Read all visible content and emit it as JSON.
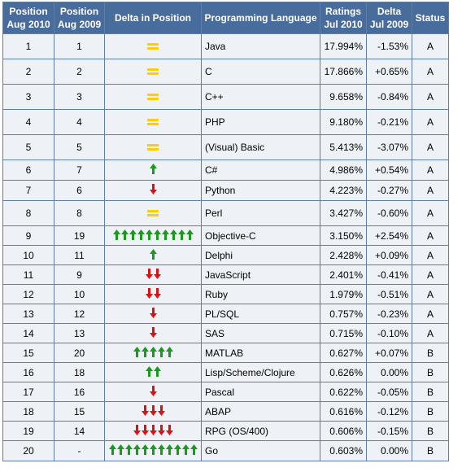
{
  "headers": {
    "pos2010": [
      "Position",
      "Aug 2010"
    ],
    "pos2009": [
      "Position",
      "Aug 2009"
    ],
    "delta_pos": "Delta in Position",
    "language": "Programming Language",
    "ratings": [
      "Ratings",
      "Jul 2010"
    ],
    "delta": [
      "Delta",
      "Jul 2009"
    ],
    "status": "Status"
  },
  "colors": {
    "up": "#1a9a1a",
    "down": "#dd1111",
    "same": "#ffcc00",
    "header_bg": "#486c9c",
    "cell_bg": "#eef2f7",
    "link": "#1a1ea6"
  },
  "rows": [
    {
      "pos2010": "1",
      "pos2009": "1",
      "change": {
        "type": "same",
        "count": 1
      },
      "language": "Java",
      "ratings": "17.994%",
      "delta": "-1.53%",
      "status": "A"
    },
    {
      "pos2010": "2",
      "pos2009": "2",
      "change": {
        "type": "same",
        "count": 1
      },
      "language": "C",
      "ratings": "17.866%",
      "delta": "+0.65%",
      "status": "A"
    },
    {
      "pos2010": "3",
      "pos2009": "3",
      "change": {
        "type": "same",
        "count": 1
      },
      "language": "C++",
      "ratings": "9.658%",
      "delta": "-0.84%",
      "status": "A"
    },
    {
      "pos2010": "4",
      "pos2009": "4",
      "change": {
        "type": "same",
        "count": 1
      },
      "language": "PHP",
      "ratings": "9.180%",
      "delta": "-0.21%",
      "status": "A"
    },
    {
      "pos2010": "5",
      "pos2009": "5",
      "change": {
        "type": "same",
        "count": 1
      },
      "language": "(Visual) Basic",
      "ratings": "5.413%",
      "delta": "-3.07%",
      "status": "A"
    },
    {
      "pos2010": "6",
      "pos2009": "7",
      "change": {
        "type": "up",
        "count": 1
      },
      "language": "C#",
      "ratings": "4.986%",
      "delta": "+0.54%",
      "status": "A"
    },
    {
      "pos2010": "7",
      "pos2009": "6",
      "change": {
        "type": "down",
        "count": 1
      },
      "language": "Python",
      "ratings": "4.223%",
      "delta": "-0.27%",
      "status": "A"
    },
    {
      "pos2010": "8",
      "pos2009": "8",
      "change": {
        "type": "same",
        "count": 1
      },
      "language": "Perl",
      "ratings": "3.427%",
      "delta": "-0.60%",
      "status": "A"
    },
    {
      "pos2010": "9",
      "pos2009": "19",
      "change": {
        "type": "up",
        "count": 10
      },
      "language": "Objective-C",
      "ratings": "3.150%",
      "delta": "+2.54%",
      "status": "A"
    },
    {
      "pos2010": "10",
      "pos2009": "11",
      "change": {
        "type": "up",
        "count": 1
      },
      "language": "Delphi",
      "ratings": "2.428%",
      "delta": "+0.09%",
      "status": "A"
    },
    {
      "pos2010": "11",
      "pos2009": "9",
      "change": {
        "type": "down",
        "count": 2
      },
      "language": "JavaScript",
      "ratings": "2.401%",
      "delta": "-0.41%",
      "status": "A"
    },
    {
      "pos2010": "12",
      "pos2009": "10",
      "change": {
        "type": "down",
        "count": 2
      },
      "language": "Ruby",
      "ratings": "1.979%",
      "delta": "-0.51%",
      "status": "A"
    },
    {
      "pos2010": "13",
      "pos2009": "12",
      "change": {
        "type": "down",
        "count": 1
      },
      "language": "PL/SQL",
      "ratings": "0.757%",
      "delta": "-0.23%",
      "status": "A"
    },
    {
      "pos2010": "14",
      "pos2009": "13",
      "change": {
        "type": "down",
        "count": 1
      },
      "language": "SAS",
      "ratings": "0.715%",
      "delta": "-0.10%",
      "status": "A"
    },
    {
      "pos2010": "15",
      "pos2009": "20",
      "change": {
        "type": "up",
        "count": 5
      },
      "language": "MATLAB",
      "ratings": "0.627%",
      "delta": "+0.07%",
      "status": "B"
    },
    {
      "pos2010": "16",
      "pos2009": "18",
      "change": {
        "type": "up",
        "count": 2
      },
      "language": "Lisp/Scheme/Clojure",
      "ratings": "0.626%",
      "delta": "0.00%",
      "status": "B"
    },
    {
      "pos2010": "17",
      "pos2009": "16",
      "change": {
        "type": "down",
        "count": 1
      },
      "language": "Pascal",
      "ratings": "0.622%",
      "delta": "-0.05%",
      "status": "B"
    },
    {
      "pos2010": "18",
      "pos2009": "15",
      "change": {
        "type": "down",
        "count": 3
      },
      "language": "ABAP",
      "ratings": "0.616%",
      "delta": "-0.12%",
      "status": "B"
    },
    {
      "pos2010": "19",
      "pos2009": "14",
      "change": {
        "type": "down",
        "count": 5
      },
      "language": "RPG (OS/400)",
      "ratings": "0.606%",
      "delta": "-0.15%",
      "status": "B"
    },
    {
      "pos2010": "20",
      "pos2009": "-",
      "change": {
        "type": "up",
        "count": 11
      },
      "language": "Go",
      "ratings": "0.603%",
      "delta": "0.00%",
      "status": "B"
    }
  ]
}
